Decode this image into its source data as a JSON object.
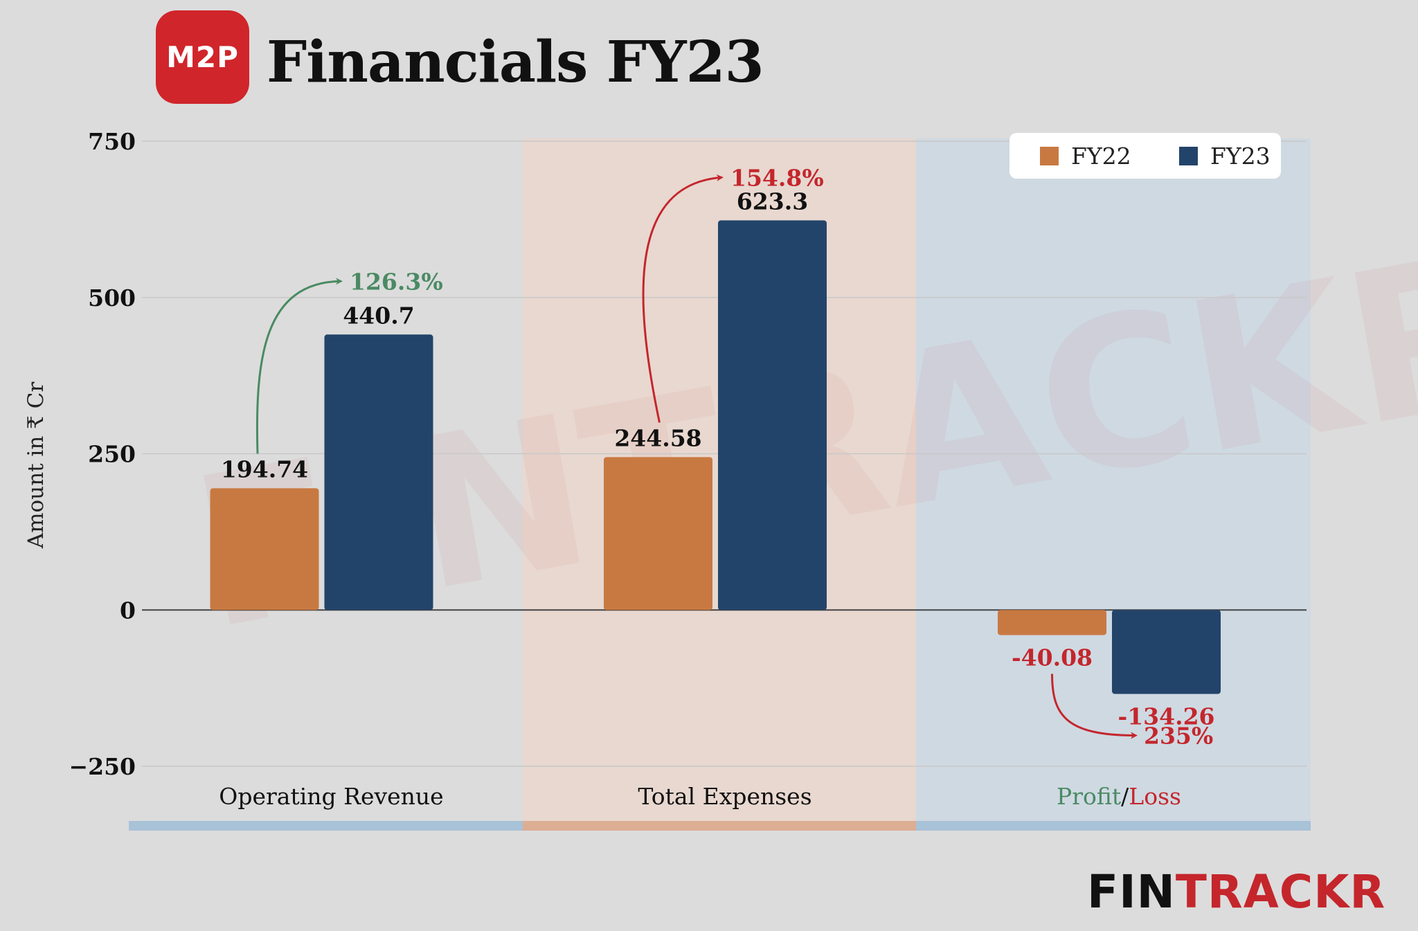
{
  "brand": {
    "logo_text": "M2P",
    "title": "Financials FY23",
    "watermark": "FINTRACKR",
    "footer_fin": "FIN",
    "footer_trackr": "TRACKR"
  },
  "colors": {
    "fy22": "#c87941",
    "fy23": "#23446a",
    "growth_positive": "#4a8a63",
    "growth_negative": "#c4262c",
    "bg_group1": "#dcdcdc",
    "bg_group2": "#e8d8d0",
    "bg_group3": "#cfd9e2"
  },
  "chart_data": {
    "type": "bar",
    "ylabel": "Amount in ₹ Cr",
    "ylim": [
      -250,
      750
    ],
    "yticks": [
      -250,
      0,
      250,
      500,
      750
    ],
    "grid": true,
    "legend_position": "top-right",
    "categories": [
      "Operating Revenue",
      "Total Expenses",
      "Profit/Loss"
    ],
    "category_label_parts": [
      [
        {
          "text": "Operating Revenue",
          "color": "#111111"
        }
      ],
      [
        {
          "text": "Total Expenses",
          "color": "#111111"
        }
      ],
      [
        {
          "text": "Profit",
          "color": "#4a8a63"
        },
        {
          "text": "/",
          "color": "#111111"
        },
        {
          "text": "Loss",
          "color": "#c4262c"
        }
      ]
    ],
    "series": [
      {
        "name": "FY22",
        "values": [
          194.74,
          244.58,
          -40.08
        ],
        "labels": [
          "194.74",
          "244.58",
          "-40.08"
        ]
      },
      {
        "name": "FY23",
        "values": [
          440.7,
          623.3,
          -134.26
        ],
        "labels": [
          "440.7",
          "623.3",
          "-134.26"
        ]
      }
    ],
    "growth": [
      "126.3%",
      "154.8%",
      "235%"
    ]
  }
}
